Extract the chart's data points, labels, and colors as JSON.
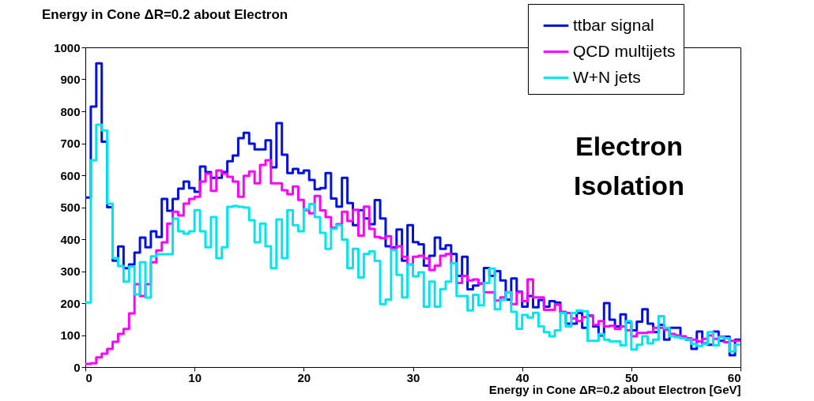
{
  "chart_data": {
    "type": "histogram",
    "title": "Energy in Cone ΔR=0.2 about Electron",
    "xlabel": "Energy in Cone ΔR=0.2 about Electron [GeV]",
    "annotations": [
      "Electron Isolation"
    ],
    "legend": "top right",
    "xlim": [
      0,
      60
    ],
    "ylim": [
      0,
      1000
    ],
    "xticks": [
      0,
      10,
      20,
      30,
      40,
      50,
      60
    ],
    "yticks": [
      0,
      100,
      200,
      300,
      400,
      500,
      600,
      700,
      800,
      900,
      1000
    ],
    "bins": [
      0,
      0.5,
      1,
      1.5,
      2,
      2.5,
      3,
      3.5,
      4,
      4.5,
      5,
      5.5,
      6,
      6.5,
      7,
      7.5,
      8,
      8.5,
      9,
      9.5,
      10,
      10.5,
      11,
      11.5,
      12,
      12.5,
      13,
      13.5,
      14,
      14.5,
      15,
      15.5,
      16,
      16.5,
      17,
      17.5,
      18,
      18.5,
      19,
      19.5,
      20,
      20.5,
      21,
      21.5,
      22,
      22.5,
      23,
      23.5,
      24,
      24.5,
      25,
      25.5,
      26,
      26.5,
      27,
      27.5,
      28,
      28.5,
      29,
      29.5,
      30,
      30.5,
      31,
      31.5,
      32,
      32.5,
      33,
      33.5,
      34,
      34.5,
      35,
      35.5,
      36,
      36.5,
      37,
      37.5,
      38,
      38.5,
      39,
      39.5,
      40,
      40.5,
      41,
      41.5,
      42,
      42.5,
      43,
      43.5,
      44,
      44.5,
      45,
      45.5,
      46,
      46.5,
      47,
      47.5,
      48,
      48.5,
      49,
      49.5,
      50,
      50.5,
      51,
      51.5,
      52,
      52.5,
      53,
      53.5,
      54,
      54.5,
      55,
      55.5,
      56,
      56.5,
      57,
      57.5,
      58,
      58.5,
      59,
      59.5,
      60
    ],
    "series": [
      {
        "name": "ttbar signal",
        "color": "#0010e6",
        "values": [
          530,
          815,
          950,
          705,
          500,
          333,
          377,
          309,
          321,
          358,
          405,
          375,
          425,
          407,
          526,
          489,
          526,
          558,
          580,
          560,
          548,
          627,
          610,
          592,
          592,
          610,
          644,
          662,
          716,
          733,
          699,
          681,
          681,
          709,
          625,
          763,
          664,
          607,
          620,
          607,
          615,
          585,
          556,
          560,
          607,
          527,
          502,
          592,
          513,
          444,
          491,
          465,
          447,
          522,
          465,
          378,
          374,
          430,
          333,
          444,
          391,
          384,
          317,
          348,
          405,
          370,
          381,
          354,
          285,
          345,
          243,
          255,
          261,
          310,
          285,
          300,
          271,
          211,
          277,
          236,
          189,
          222,
          187,
          210,
          189,
          206,
          202,
          172,
          136,
          136,
          169,
          123,
          161,
          127,
          99,
          200,
          148,
          127,
          165,
          140,
          115,
          142,
          181,
          136,
          109,
          132,
          86,
          123,
          123,
          90,
          86,
          57,
          111,
          74,
          70,
          111,
          82,
          95,
          37,
          86
        ]
      },
      {
        "name": "QCD multijets",
        "color": "#ff00ff",
        "values": [
          10,
          12,
          30,
          42,
          57,
          79,
          104,
          119,
          168,
          259,
          222,
          259,
          328,
          365,
          390,
          449,
          486,
          474,
          511,
          526,
          533,
          580,
          605,
          551,
          615,
          605,
          595,
          580,
          533,
          598,
          612,
          575,
          632,
          647,
          575,
          575,
          553,
          541,
          565,
          523,
          491,
          481,
          535,
          490,
          469,
          436,
          447,
          486,
          457,
          492,
          411,
          502,
          432,
          407,
          403,
          409,
          370,
          378,
          345,
          321,
          345,
          348,
          340,
          304,
          317,
          348,
          354,
          325,
          263,
          285,
          271,
          274,
          261,
          234,
          234,
          208,
          218,
          234,
          197,
          234,
          206,
          274,
          218,
          218,
          179,
          179,
          195,
          172,
          169,
          152,
          144,
          156,
          160,
          132,
          144,
          127,
          129,
          119,
          127,
          115,
          96,
          107,
          107,
          109,
          123,
          123,
          117,
          104,
          99,
          96,
          90,
          86,
          80,
          88,
          99,
          88,
          95,
          78,
          82,
          82
        ]
      },
      {
        "name": "W+N jets",
        "color": "#00e5ee",
        "values": [
          202,
          647,
          758,
          740,
          511,
          341,
          316,
          267,
          314,
          227,
          328,
          217,
          346,
          353,
          353,
          353,
          464,
          425,
          417,
          425,
          491,
          425,
          375,
          469,
          341,
          375,
          501,
          504,
          501,
          499,
          459,
          390,
          449,
          378,
          309,
          462,
          341,
          491,
          444,
          425,
          494,
          510,
          469,
          420,
          370,
          432,
          444,
          399,
          310,
          370,
          280,
          354,
          362,
          332,
          197,
          211,
          366,
          288,
          218,
          321,
          284,
          296,
          189,
          267,
          189,
          244,
          267,
          325,
          222,
          222,
          177,
          226,
          193,
          263,
          308,
          181,
          210,
          234,
          173,
          120,
          163,
          155,
          170,
          127,
          109,
          96,
          115,
          169,
          127,
          169,
          177,
          175,
          82,
          82,
          103,
          86,
          80,
          80,
          68,
          144,
          55,
          70,
          96,
          74,
          86,
          159,
          123,
          96,
          93,
          90,
          86,
          72,
          66,
          72,
          109,
          68,
          93,
          90,
          49,
          70
        ]
      }
    ]
  }
}
